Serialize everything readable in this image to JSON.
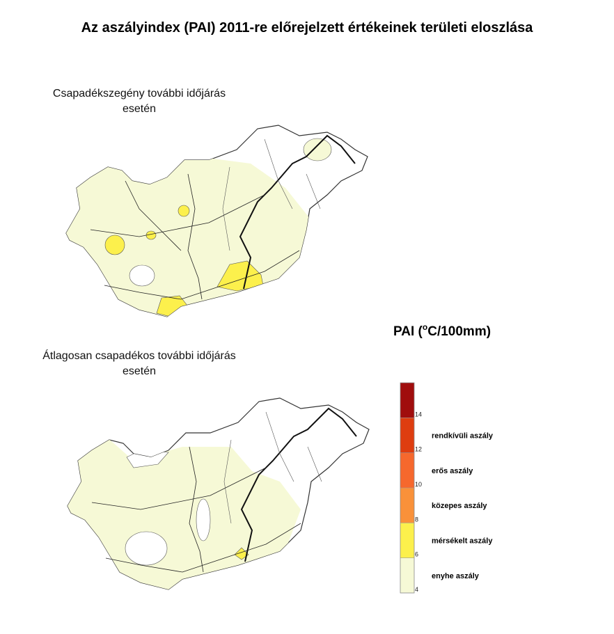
{
  "title": "Az aszályindex (PAI) 2011-re előrejelzett értékeinek területi eloszlása",
  "maps": [
    {
      "caption_lines": [
        "Csapadékszegény további időjárás",
        "esetén"
      ]
    },
    {
      "caption_lines": [
        "Átlagosan csapadékos további időjárás",
        "esetén"
      ]
    }
  ],
  "legend": {
    "title": [
      "PAI (",
      "o",
      "C/100mm)"
    ],
    "lim": [
      4,
      16
    ],
    "ticks": [
      4,
      6,
      8,
      10,
      12,
      14
    ],
    "classes": [
      {
        "from": 4,
        "to": 6,
        "label": "enyhe aszály",
        "color": "#f6f9d6"
      },
      {
        "from": 6,
        "to": 8,
        "label": "mérsékelt aszály",
        "color": "#fcf04c"
      },
      {
        "from": 8,
        "to": 10,
        "label": "közepes aszály",
        "color": "#f9913a"
      },
      {
        "from": 10,
        "to": 12,
        "label": "erős aszály",
        "color": "#f6682d"
      },
      {
        "from": 12,
        "to": 14,
        "label": "rendkívüli aszály",
        "color": "#de3d10"
      },
      {
        "from": 14,
        "to": 16,
        "color": "#a00d0d"
      }
    ]
  }
}
